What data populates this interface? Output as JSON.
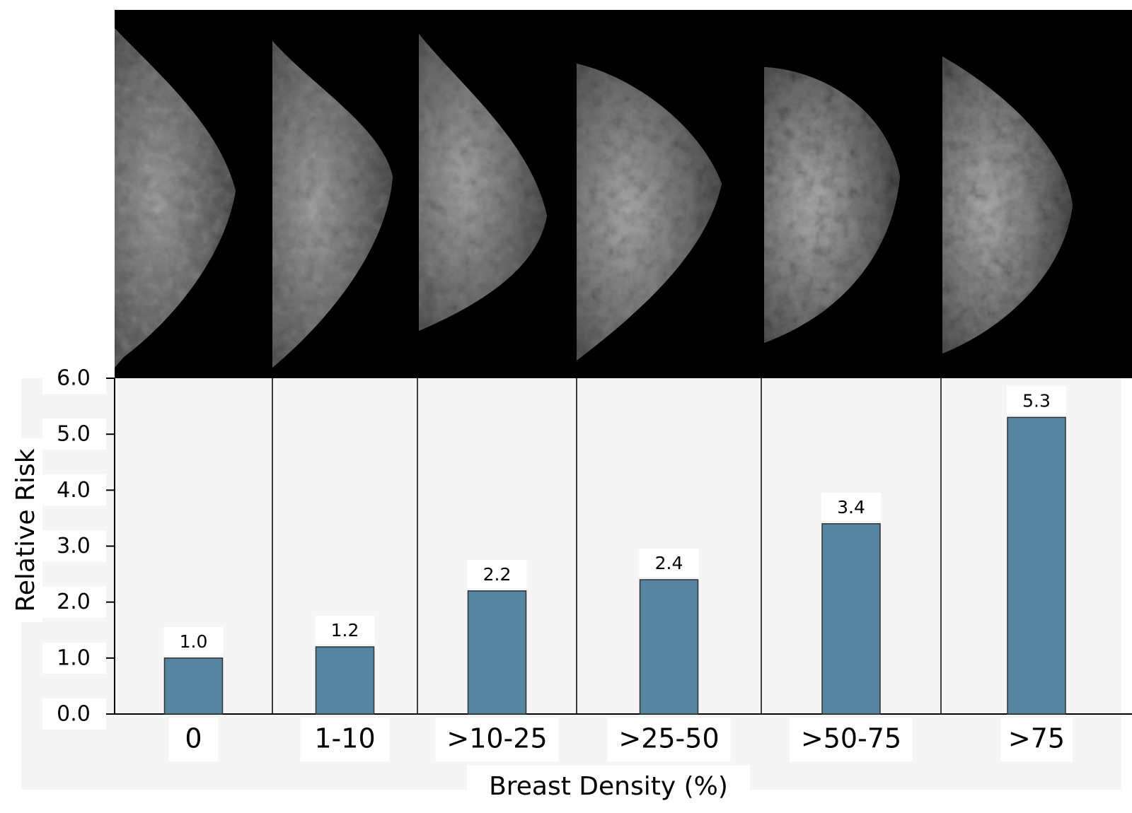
{
  "chart_data": {
    "type": "bar",
    "title": "",
    "xlabel": "Breast Density (%)",
    "ylabel": "Relative Risk",
    "categories": [
      "0",
      "1-10",
      ">10-25",
      ">25-50",
      ">50-75",
      ">75"
    ],
    "values": [
      1.0,
      1.2,
      2.2,
      2.4,
      3.4,
      5.3
    ],
    "value_labels": [
      "1.0",
      "1.2",
      "2.2",
      "2.4",
      "3.4",
      "5.3"
    ],
    "ylim": [
      0,
      6
    ],
    "yticks": [
      "0.0",
      "1.0",
      "2.0",
      "3.0",
      "4.0",
      "5.0",
      "6.0"
    ],
    "grid": false,
    "bar_color": "#5585a0",
    "panel_background": "#f5f5f5",
    "images": [
      "mammogram",
      "mammogram",
      "mammogram",
      "mammogram",
      "mammogram",
      "mammogram"
    ]
  }
}
